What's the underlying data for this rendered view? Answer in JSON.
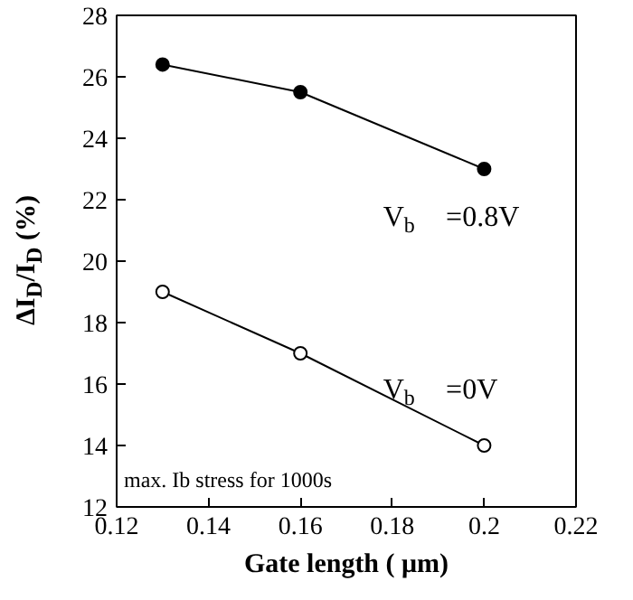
{
  "chart_data": {
    "type": "line",
    "xlabel": "Gate length ( μm)",
    "ylabel": "ΔI$_{D}$/I$_{D}$ (%)",
    "x": [
      0.13,
      0.16,
      0.2
    ],
    "series": [
      {
        "name": "V$_{b}$ =0.8V",
        "color": "#000000",
        "values": [
          26.4,
          25.5,
          23.0
        ]
      },
      {
        "name": "V$_{b}$ =0V",
        "color": "#000000",
        "values": [
          19.0,
          17.0,
          14.0
        ]
      }
    ],
    "xlim": [
      0.12,
      0.22
    ],
    "xticks": [
      0.12,
      0.14,
      0.16,
      0.18,
      0.2,
      0.22
    ],
    "ylim": [
      12,
      28
    ],
    "yticks": [
      12,
      14,
      16,
      18,
      20,
      22,
      24,
      26,
      28
    ],
    "grid": false,
    "marker": "circle",
    "line_style": "solid",
    "annotations": [
      "max. Ib stress for 1000s"
    ]
  }
}
